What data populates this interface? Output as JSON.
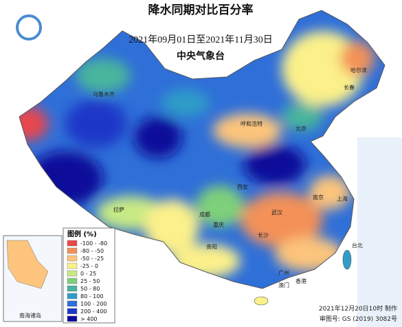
{
  "header": {
    "title": "降水同期对比百分率",
    "subtitle": "2021年09月01日至2021年11月30日",
    "agency": "中央气象台"
  },
  "legend": {
    "title": "图例 (%)",
    "items": [
      {
        "label": "-100 - -80",
        "color": "#e8474b"
      },
      {
        "label": "-80 - -50",
        "color": "#f39158"
      },
      {
        "label": "-50 - -25",
        "color": "#fcc47c"
      },
      {
        "label": "-25 - 0",
        "color": "#fbf08a"
      },
      {
        "label": "0 - 25",
        "color": "#c8ea84"
      },
      {
        "label": "25 - 50",
        "color": "#7fd07a"
      },
      {
        "label": "50 - 80",
        "color": "#4ab59c"
      },
      {
        "label": "80 - 100",
        "color": "#2f9dc8"
      },
      {
        "label": "100 - 200",
        "color": "#2f6fd8"
      },
      {
        "label": "200 - 400",
        "color": "#1e37c8"
      },
      {
        "label": "> 400",
        "color": "#0c0b9a"
      }
    ]
  },
  "map": {
    "cities": [
      "乌鲁木齐",
      "哈尔滨",
      "长春",
      "北京",
      "呼和浩特",
      "西安",
      "拉萨",
      "成都",
      "重庆",
      "武汉",
      "长沙",
      "南京",
      "上海",
      "广州",
      "贵阳",
      "台北",
      "香港",
      "澳门"
    ],
    "inset": "南海诸岛"
  },
  "footer": {
    "made": "2021年12月20日10时 制作",
    "approval": "审图号: GS (2019) 3082号"
  }
}
